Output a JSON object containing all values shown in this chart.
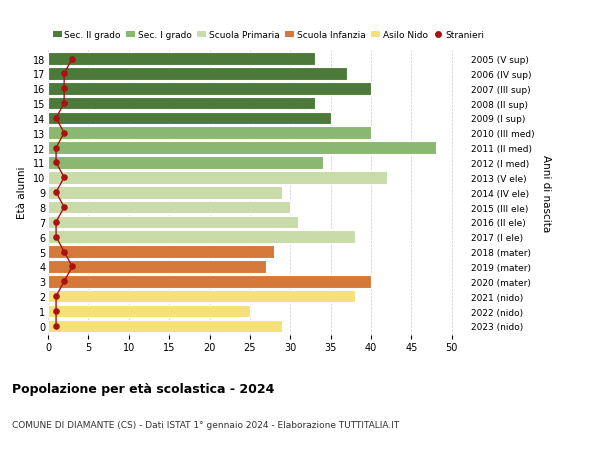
{
  "ages": [
    0,
    1,
    2,
    3,
    4,
    5,
    6,
    7,
    8,
    9,
    10,
    11,
    12,
    13,
    14,
    15,
    16,
    17,
    18
  ],
  "years": [
    "2023 (nido)",
    "2022 (nido)",
    "2021 (nido)",
    "2020 (mater)",
    "2019 (mater)",
    "2018 (mater)",
    "2017 (I ele)",
    "2016 (II ele)",
    "2015 (III ele)",
    "2014 (IV ele)",
    "2013 (V ele)",
    "2012 (I med)",
    "2011 (II med)",
    "2010 (III med)",
    "2009 (I sup)",
    "2008 (II sup)",
    "2007 (III sup)",
    "2006 (IV sup)",
    "2005 (V sup)"
  ],
  "values": [
    29,
    25,
    38,
    40,
    27,
    28,
    38,
    31,
    30,
    29,
    42,
    34,
    48,
    40,
    35,
    33,
    40,
    37,
    33
  ],
  "stranieri": [
    1,
    1,
    1,
    2,
    3,
    2,
    1,
    1,
    2,
    1,
    2,
    1,
    1,
    2,
    1,
    2,
    2,
    2,
    3
  ],
  "bar_colors": [
    "#f5e07a",
    "#f5e07a",
    "#f5e07a",
    "#d4793a",
    "#d4793a",
    "#d4793a",
    "#c8dba8",
    "#c8dba8",
    "#c8dba8",
    "#c8dba8",
    "#c8dba8",
    "#8ab870",
    "#8ab870",
    "#8ab870",
    "#4d7a3a",
    "#4d7a3a",
    "#4d7a3a",
    "#4d7a3a",
    "#4d7a3a"
  ],
  "legend_colors": [
    "#4d7a3a",
    "#8ab870",
    "#c8dba8",
    "#d4793a",
    "#f5e07a"
  ],
  "legend_labels": [
    "Sec. II grado",
    "Sec. I grado",
    "Scuola Primaria",
    "Scuola Infanzia",
    "Asilo Nido"
  ],
  "stranieri_color": "#aa1111",
  "stranieri_label": "Stranieri",
  "ylabel_left": "Età alunni",
  "ylabel_right": "Anni di nascita",
  "title": "Popolazione per età scolastica - 2024",
  "subtitle": "COMUNE DI DIAMANTE (CS) - Dati ISTAT 1° gennaio 2024 - Elaborazione TUTTITALIA.IT",
  "xlim": [
    0,
    52
  ],
  "xticks": [
    0,
    5,
    10,
    15,
    20,
    25,
    30,
    35,
    40,
    45,
    50
  ],
  "grid_color": "#cccccc",
  "bg_color": "#ffffff",
  "bar_edgecolor": "#ffffff"
}
